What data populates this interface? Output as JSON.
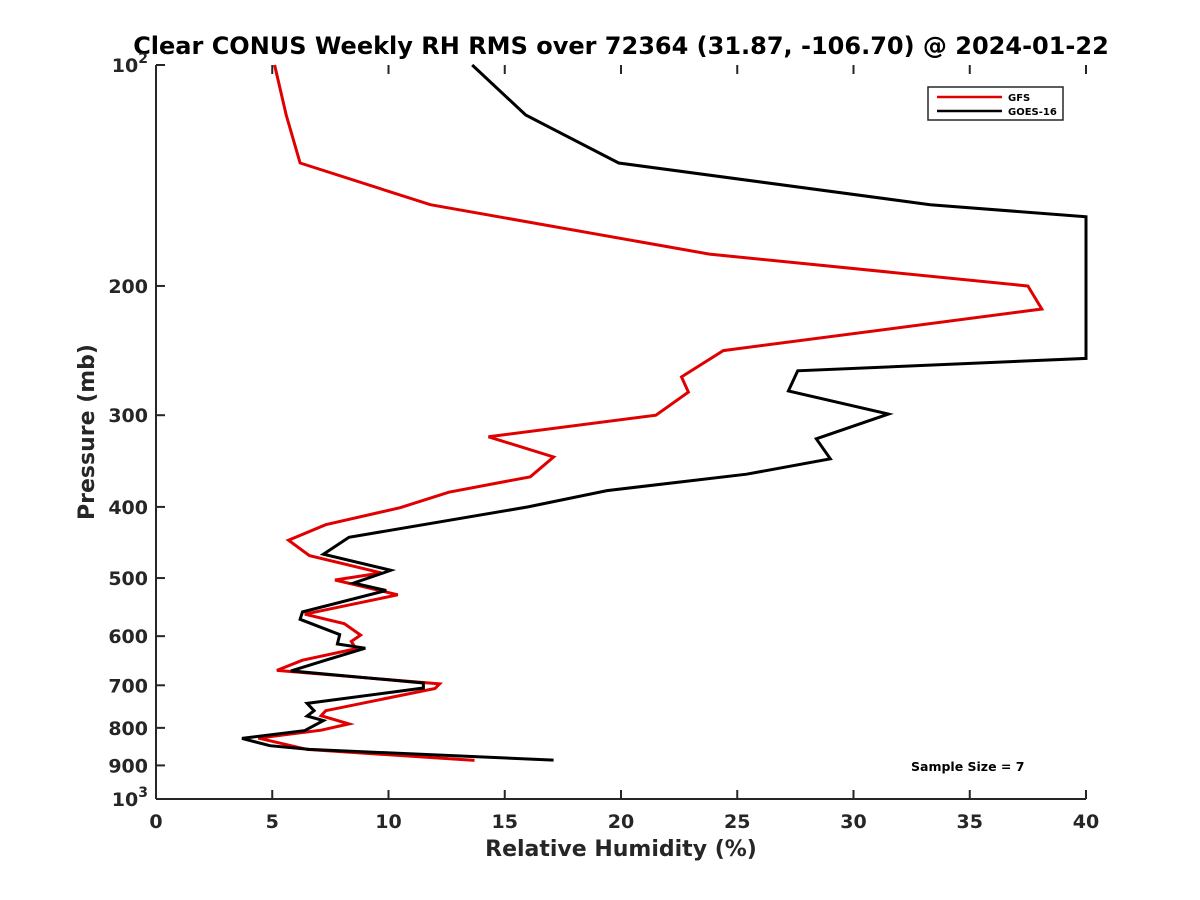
{
  "chart_data": {
    "type": "line",
    "title": "Clear CONUS Weekly RH RMS over 72364 (31.87, -106.70) @ 2024-01-22",
    "xlabel": "Relative Humidity (%)",
    "ylabel": "Pressure (mb)",
    "xlim": [
      0,
      40
    ],
    "ylim": [
      100,
      1000
    ],
    "y_scale": "log",
    "y_reversed": true,
    "grid": false,
    "legend_position": "top-right",
    "x_ticks": [
      {
        "value": 0,
        "label": "0"
      },
      {
        "value": 5,
        "label": "5"
      },
      {
        "value": 10,
        "label": "10"
      },
      {
        "value": 15,
        "label": "15"
      },
      {
        "value": 20,
        "label": "20"
      },
      {
        "value": 25,
        "label": "25"
      },
      {
        "value": 30,
        "label": "30"
      },
      {
        "value": 35,
        "label": "35"
      },
      {
        "value": 40,
        "label": "40"
      }
    ],
    "y_ticks": [
      {
        "value": 100,
        "base": "10",
        "exp": "2"
      },
      {
        "value": 200,
        "label": "200"
      },
      {
        "value": 300,
        "label": "300"
      },
      {
        "value": 400,
        "label": "400"
      },
      {
        "value": 500,
        "label": "500"
      },
      {
        "value": 600,
        "label": "600"
      },
      {
        "value": 700,
        "label": "700"
      },
      {
        "value": 800,
        "label": "800"
      },
      {
        "value": 900,
        "label": "900"
      },
      {
        "value": 1000,
        "base": "10",
        "exp": "3"
      }
    ],
    "series": [
      {
        "name": "GFS",
        "color": "#e00000",
        "points": [
          {
            "x": 5.1,
            "p": 100
          },
          {
            "x": 5.6,
            "p": 117
          },
          {
            "x": 6.2,
            "p": 136
          },
          {
            "x": 11.8,
            "p": 155
          },
          {
            "x": 23.8,
            "p": 181
          },
          {
            "x": 37.5,
            "p": 200
          },
          {
            "x": 38.1,
            "p": 215
          },
          {
            "x": 24.4,
            "p": 245
          },
          {
            "x": 22.6,
            "p": 266
          },
          {
            "x": 22.9,
            "p": 279
          },
          {
            "x": 21.5,
            "p": 300
          },
          {
            "x": 14.3,
            "p": 321
          },
          {
            "x": 17.1,
            "p": 342
          },
          {
            "x": 16.1,
            "p": 364
          },
          {
            "x": 12.6,
            "p": 382
          },
          {
            "x": 10.5,
            "p": 401
          },
          {
            "x": 7.3,
            "p": 423
          },
          {
            "x": 5.7,
            "p": 444
          },
          {
            "x": 6.6,
            "p": 466
          },
          {
            "x": 9.7,
            "p": 492
          },
          {
            "x": 7.7,
            "p": 503
          },
          {
            "x": 10.4,
            "p": 527
          },
          {
            "x": 6.4,
            "p": 560
          },
          {
            "x": 8.1,
            "p": 577
          },
          {
            "x": 8.8,
            "p": 598
          },
          {
            "x": 8.4,
            "p": 610
          },
          {
            "x": 8.6,
            "p": 624
          },
          {
            "x": 6.3,
            "p": 647
          },
          {
            "x": 5.2,
            "p": 668
          },
          {
            "x": 12.2,
            "p": 697
          },
          {
            "x": 12.0,
            "p": 707
          },
          {
            "x": 7.3,
            "p": 758
          },
          {
            "x": 7.1,
            "p": 770
          },
          {
            "x": 8.3,
            "p": 790
          },
          {
            "x": 7.1,
            "p": 806
          },
          {
            "x": 4.4,
            "p": 826
          },
          {
            "x": 6.5,
            "p": 856
          },
          {
            "x": 13.7,
            "p": 886
          }
        ]
      },
      {
        "name": "GOES-16",
        "color": "#000000",
        "points": [
          {
            "x": 13.6,
            "p": 100
          },
          {
            "x": 15.9,
            "p": 117
          },
          {
            "x": 19.9,
            "p": 136
          },
          {
            "x": 33.3,
            "p": 155
          },
          {
            "x": 40.0,
            "p": 161
          },
          {
            "x": 40.0,
            "p": 251
          },
          {
            "x": 27.6,
            "p": 261
          },
          {
            "x": 27.2,
            "p": 278
          },
          {
            "x": 31.5,
            "p": 299
          },
          {
            "x": 28.4,
            "p": 323
          },
          {
            "x": 29.0,
            "p": 344
          },
          {
            "x": 25.4,
            "p": 361
          },
          {
            "x": 19.4,
            "p": 380
          },
          {
            "x": 16.0,
            "p": 400
          },
          {
            "x": 8.3,
            "p": 440
          },
          {
            "x": 7.2,
            "p": 464
          },
          {
            "x": 10.1,
            "p": 488
          },
          {
            "x": 8.5,
            "p": 508
          },
          {
            "x": 9.9,
            "p": 520
          },
          {
            "x": 6.3,
            "p": 556
          },
          {
            "x": 6.2,
            "p": 569
          },
          {
            "x": 7.9,
            "p": 597
          },
          {
            "x": 7.8,
            "p": 615
          },
          {
            "x": 9.0,
            "p": 623
          },
          {
            "x": 7.3,
            "p": 647
          },
          {
            "x": 5.8,
            "p": 669
          },
          {
            "x": 11.5,
            "p": 695
          },
          {
            "x": 11.5,
            "p": 706
          },
          {
            "x": 6.5,
            "p": 741
          },
          {
            "x": 6.8,
            "p": 758
          },
          {
            "x": 6.5,
            "p": 771
          },
          {
            "x": 7.2,
            "p": 782
          },
          {
            "x": 6.4,
            "p": 807
          },
          {
            "x": 3.7,
            "p": 827
          },
          {
            "x": 4.9,
            "p": 846
          },
          {
            "x": 6.6,
            "p": 856
          },
          {
            "x": 17.1,
            "p": 885
          }
        ]
      }
    ],
    "annotation": "Sample Size = 7"
  }
}
